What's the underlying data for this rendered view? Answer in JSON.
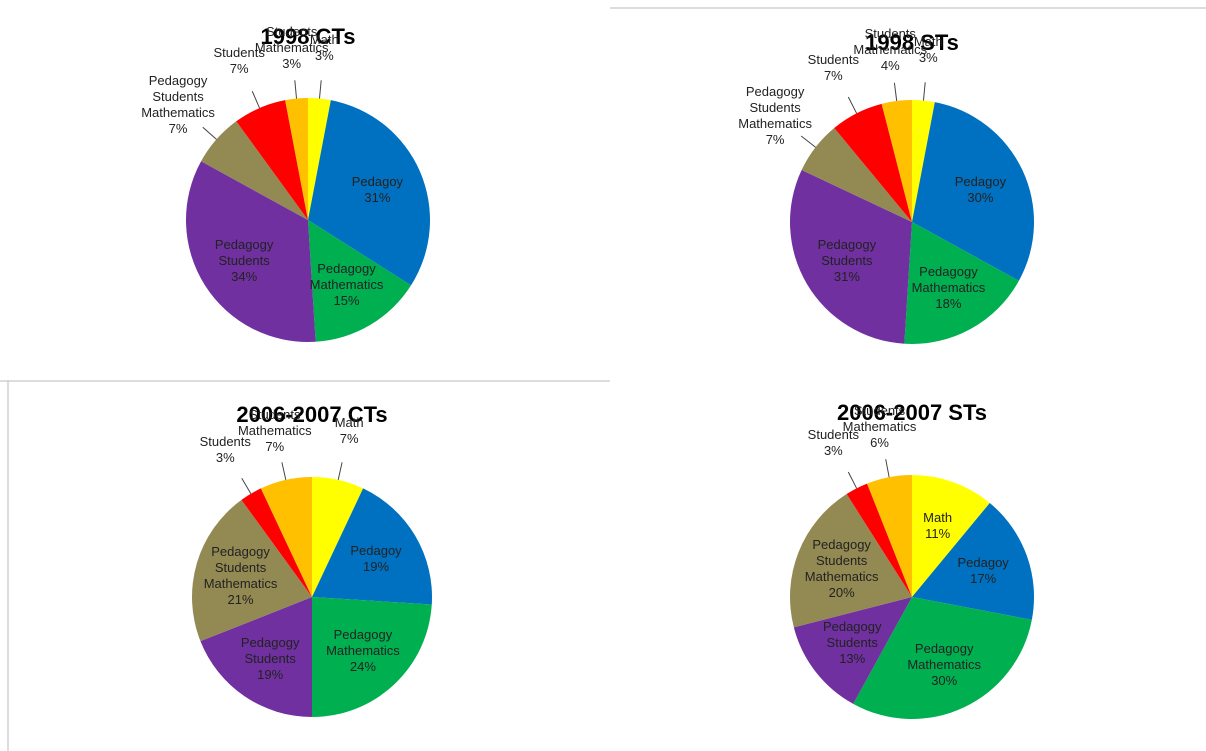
{
  "chart_data": [
    {
      "type": "pie",
      "title": "1998 CTs",
      "categories": [
        "Math",
        "Pedagoy",
        "Pedagogy Mathematics",
        "Pedagogy Students",
        "Pedagogy Students Mathematics",
        "Students",
        "Students Mathematics"
      ],
      "values": [
        3,
        31,
        15,
        34,
        7,
        7,
        3
      ],
      "value_labels": [
        "3%",
        "31%",
        "15%",
        "34%",
        "7%",
        "7%",
        "3%"
      ],
      "colors": [
        "#ffff00",
        "#0070c0",
        "#00b050",
        "#7030a0",
        "#938953",
        "#ff0000",
        "#ffc000"
      ]
    },
    {
      "type": "pie",
      "title": "1998 STs",
      "categories": [
        "Math",
        "Pedagoy",
        "Pedagogy Mathematics",
        "Pedagogy Students",
        "Pedagogy Students Mathematics",
        "Students",
        "Students Mathematics"
      ],
      "values": [
        3,
        30,
        18,
        31,
        7,
        7,
        4
      ],
      "value_labels": [
        "3%",
        "30%",
        "18%",
        "31%",
        "7%",
        "7%",
        "4%"
      ],
      "colors": [
        "#ffff00",
        "#0070c0",
        "#00b050",
        "#7030a0",
        "#938953",
        "#ff0000",
        "#ffc000"
      ]
    },
    {
      "type": "pie",
      "title": "2006-2007 CTs",
      "categories": [
        "Math",
        "Pedagoy",
        "Pedagogy Mathematics",
        "Pedagogy Students",
        "Pedagogy Students Mathematics",
        "Students",
        "Students Mathematics"
      ],
      "values": [
        7,
        19,
        24,
        19,
        21,
        3,
        7
      ],
      "value_labels": [
        "7%",
        "19%",
        "24%",
        "19%",
        "21%",
        "3%",
        "7%"
      ],
      "colors": [
        "#ffff00",
        "#0070c0",
        "#00b050",
        "#7030a0",
        "#938953",
        "#ff0000",
        "#ffc000"
      ]
    },
    {
      "type": "pie",
      "title": "2006-2007 STs",
      "categories": [
        "Math",
        "Pedagoy",
        "Pedagogy Mathematics",
        "Pedagogy Students",
        "Pedagogy Students Mathematics",
        "Students",
        "Students Mathematics"
      ],
      "values": [
        11,
        17,
        30,
        13,
        20,
        3,
        6
      ],
      "value_labels": [
        "11%",
        "17%",
        "30%",
        "13%",
        "20%",
        "3%",
        "6%"
      ],
      "colors": [
        "#ffff00",
        "#0070c0",
        "#00b050",
        "#7030a0",
        "#938953",
        "#ff0000",
        "#ffc000"
      ]
    }
  ]
}
